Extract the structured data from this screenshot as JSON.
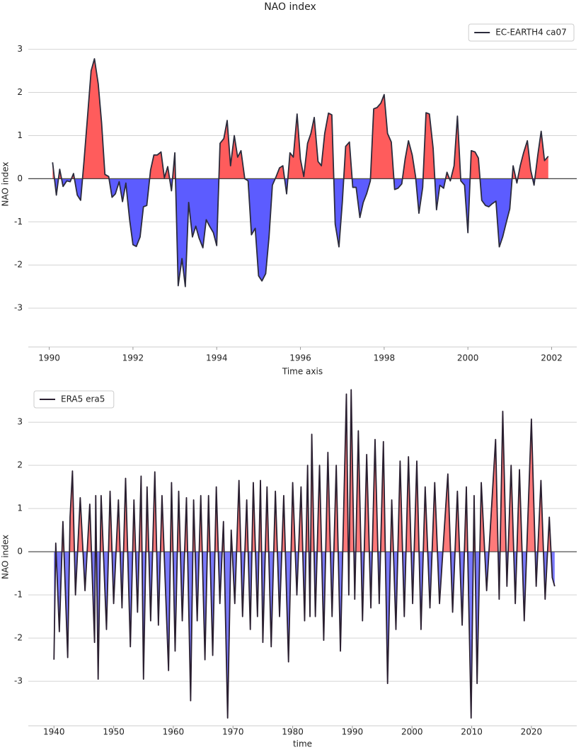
{
  "chart_data": [
    {
      "type": "line",
      "title": "NAO index",
      "xlabel": "Time axis",
      "ylabel": "NAO index",
      "xlim": [
        1989.5,
        2002.6
      ],
      "ylim": [
        -3.9,
        3.65
      ],
      "xticks": [
        1990,
        1992,
        1994,
        1996,
        1998,
        2000,
        2002
      ],
      "yticks": [
        -3,
        -2,
        -1,
        0,
        1,
        2,
        3
      ],
      "grid": true,
      "legend": "upper right",
      "fill_above_color": "#ff5c5c",
      "fill_below_color": "#5c5cff",
      "x": [
        1990.08,
        1990.17,
        1990.25,
        1990.33,
        1990.42,
        1990.5,
        1990.58,
        1990.67,
        1990.75,
        1990.83,
        1990.92,
        1991,
        1991.08,
        1991.17,
        1991.25,
        1991.33,
        1991.42,
        1991.5,
        1991.58,
        1991.67,
        1991.75,
        1991.83,
        1991.92,
        1992,
        1992.08,
        1992.17,
        1992.25,
        1992.33,
        1992.42,
        1992.5,
        1992.58,
        1992.67,
        1992.75,
        1992.83,
        1992.92,
        1993,
        1993.08,
        1993.17,
        1993.25,
        1993.33,
        1993.42,
        1993.5,
        1993.58,
        1993.67,
        1993.75,
        1993.83,
        1993.92,
        1994,
        1994.08,
        1994.17,
        1994.25,
        1994.33,
        1994.42,
        1994.5,
        1994.58,
        1994.67,
        1994.75,
        1994.83,
        1994.92,
        1995,
        1995.08,
        1995.17,
        1995.25,
        1995.33,
        1995.42,
        1995.5,
        1995.58,
        1995.67,
        1995.75,
        1995.83,
        1995.92,
        1996,
        1996.08,
        1996.17,
        1996.25,
        1996.33,
        1996.42,
        1996.5,
        1996.58,
        1996.67,
        1996.75,
        1996.83,
        1996.92,
        1997,
        1997.08,
        1997.17,
        1997.25,
        1997.33,
        1997.42,
        1997.5,
        1997.58,
        1997.67,
        1997.75,
        1997.83,
        1997.92,
        1998,
        1998.08,
        1998.17,
        1998.25,
        1998.33,
        1998.42,
        1998.5,
        1998.58,
        1998.67,
        1998.75,
        1998.83,
        1998.92,
        1999,
        1999.08,
        1999.17,
        1999.25,
        1999.33,
        1999.42,
        1999.5,
        1999.58,
        1999.67,
        1999.75,
        1999.83,
        1999.92,
        2000,
        2000.08,
        2000.17,
        2000.25,
        2000.33,
        2000.42,
        2000.5,
        2000.58,
        2000.67,
        2000.75,
        2000.83,
        2000.92,
        2001,
        2001.08,
        2001.17,
        2001.25,
        2001.33,
        2001.42,
        2001.5,
        2001.58,
        2001.67,
        2001.75,
        2001.83,
        2001.92
      ],
      "series": [
        {
          "name": "EC-EARTH4 ca07",
          "color": "#2b2b3b",
          "values": [
            0.38,
            -0.38,
            0.22,
            -0.18,
            -0.05,
            -0.07,
            0.12,
            -0.38,
            -0.5,
            0.4,
            1.5,
            2.5,
            2.78,
            2.2,
            1.3,
            0.1,
            0.05,
            -0.43,
            -0.35,
            -0.07,
            -0.53,
            -0.1,
            -0.95,
            -1.53,
            -1.57,
            -1.35,
            -0.65,
            -0.62,
            0.2,
            0.55,
            0.55,
            0.62,
            0.02,
            0.28,
            -0.28,
            0.6,
            -2.48,
            -1.85,
            -2.5,
            -0.55,
            -1.35,
            -1.1,
            -1.38,
            -1.6,
            -0.95,
            -1.1,
            -1.25,
            -1.55,
            0.82,
            0.93,
            1.35,
            0.3,
            1.0,
            0.5,
            0.65,
            0.0,
            -0.05,
            -1.3,
            -1.15,
            -2.25,
            -2.37,
            -2.2,
            -1.35,
            -0.15,
            0.05,
            0.25,
            0.3,
            -0.35,
            0.6,
            0.5,
            1.5,
            0.45,
            0.05,
            0.82,
            1.05,
            1.42,
            0.4,
            0.3,
            1.05,
            1.52,
            1.48,
            -1.05,
            -1.58,
            -0.55,
            0.75,
            0.85,
            -0.2,
            -0.2,
            -0.9,
            -0.55,
            -0.35,
            -0.05,
            1.62,
            1.65,
            1.75,
            1.95,
            1.05,
            0.85,
            -0.25,
            -0.22,
            -0.12,
            0.45,
            0.88,
            0.55,
            0.05,
            -0.8,
            -0.2,
            1.53,
            1.5,
            0.7,
            -0.72,
            -0.15,
            -0.22,
            0.15,
            -0.05,
            0.3,
            1.45,
            -0.05,
            -0.15,
            -1.25,
            0.65,
            0.62,
            0.48,
            -0.5,
            -0.62,
            -0.65,
            -0.58,
            -0.52,
            -1.58,
            -1.35,
            -1.0,
            -0.7,
            0.3,
            -0.1,
            0.3,
            0.6,
            0.88,
            0.2,
            -0.15,
            0.55,
            1.1,
            0.42,
            0.52
          ]
        }
      ]
    },
    {
      "type": "line",
      "xlabel": "time",
      "ylabel": "NAO index",
      "xlim": [
        1935.7,
        2027.6
      ],
      "ylim": [
        -4.03,
        3.79
      ],
      "xticks": [
        1940,
        1950,
        1960,
        1970,
        1980,
        1990,
        2000,
        2010,
        2020
      ],
      "yticks": [
        -3,
        -2,
        -1,
        0,
        1,
        2,
        3
      ],
      "grid": true,
      "legend": "upper left",
      "fill_above_color": "#ff7a7a",
      "fill_below_color": "#7a7aff",
      "x": [
        1940.0,
        1940.3,
        1940.9,
        1941.5,
        1942.3,
        1942.7,
        1943.1,
        1943.6,
        1944.4,
        1945.2,
        1946.0,
        1946.8,
        1947.0,
        1947.4,
        1947.9,
        1948.8,
        1949.4,
        1950.0,
        1950.8,
        1951.4,
        1952.0,
        1952.8,
        1953.4,
        1954.0,
        1954.6,
        1955.0,
        1955.6,
        1956.2,
        1956.9,
        1957.5,
        1958.1,
        1959.2,
        1959.7,
        1960.3,
        1960.9,
        1961.5,
        1962.2,
        1962.9,
        1963.4,
        1964.0,
        1964.6,
        1965.3,
        1965.9,
        1966.6,
        1967.2,
        1967.8,
        1968.4,
        1969.1,
        1969.7,
        1970.3,
        1971.0,
        1971.6,
        1972.3,
        1972.9,
        1973.4,
        1974.1,
        1974.6,
        1975.0,
        1975.7,
        1976.4,
        1977.1,
        1977.8,
        1978.5,
        1979.3,
        1980.0,
        1980.7,
        1981.4,
        1982.0,
        1982.5,
        1982.9,
        1983.2,
        1983.8,
        1984.5,
        1985.2,
        1985.9,
        1986.6,
        1987.3,
        1988.0,
        1989.0,
        1989.4,
        1989.8,
        1990.4,
        1991.0,
        1991.7,
        1992.4,
        1993.1,
        1993.8,
        1994.5,
        1995.2,
        1995.9,
        1996.6,
        1997.3,
        1998.0,
        1998.7,
        1999.4,
        2000.1,
        2000.8,
        2001.5,
        2002.2,
        2003.0,
        2003.8,
        2004.6,
        2006.0,
        2006.8,
        2007.6,
        2008.4,
        2009.1,
        2009.9,
        2010.4,
        2010.9,
        2011.6,
        2012.5,
        2014.0,
        2014.6,
        2015.2,
        2015.9,
        2016.6,
        2017.3,
        2018.0,
        2018.8,
        2020.0,
        2020.8,
        2021.6,
        2022.3,
        2023.0,
        2023.5,
        2023.9
      ],
      "series": [
        {
          "name": "ERA5 era5",
          "color": "#2a1f30",
          "values": [
            -2.5,
            0.2,
            -1.85,
            0.7,
            -2.45,
            0.8,
            1.87,
            -1.0,
            1.25,
            -0.9,
            1.1,
            -2.1,
            1.3,
            -2.95,
            1.3,
            -1.8,
            1.4,
            -1.2,
            1.2,
            -1.3,
            1.7,
            -2.2,
            1.2,
            -1.4,
            1.75,
            -2.95,
            1.5,
            -1.6,
            1.85,
            -1.7,
            1.3,
            -2.75,
            1.6,
            -2.3,
            1.4,
            -1.6,
            1.25,
            -3.45,
            1.2,
            -1.6,
            1.3,
            -2.5,
            1.3,
            -2.4,
            1.5,
            -1.2,
            0.7,
            -3.85,
            0.5,
            -1.2,
            1.65,
            -1.5,
            1.2,
            -1.8,
            1.6,
            -1.5,
            1.65,
            -2.1,
            1.5,
            -2.2,
            1.4,
            -1.5,
            1.3,
            -2.55,
            1.6,
            -1.0,
            1.5,
            -1.6,
            2.0,
            -1.5,
            2.72,
            -1.5,
            2.0,
            -2.05,
            2.3,
            -1.5,
            2.0,
            -2.3,
            3.65,
            -1.0,
            3.75,
            -1.1,
            2.8,
            -1.6,
            2.25,
            -1.3,
            2.6,
            -1.2,
            2.55,
            -3.05,
            1.2,
            -1.8,
            2.1,
            -1.5,
            2.2,
            -1.2,
            2.1,
            -1.8,
            1.5,
            -1.3,
            1.6,
            -1.2,
            1.8,
            -1.4,
            1.4,
            -1.7,
            1.5,
            -3.85,
            1.3,
            -3.05,
            1.6,
            -0.9,
            2.6,
            -1.1,
            3.25,
            -0.8,
            2.0,
            -1.2,
            1.9,
            -1.6,
            3.07,
            -0.8,
            1.65,
            -1.1,
            0.8,
            -0.6,
            -0.8
          ]
        }
      ]
    }
  ]
}
